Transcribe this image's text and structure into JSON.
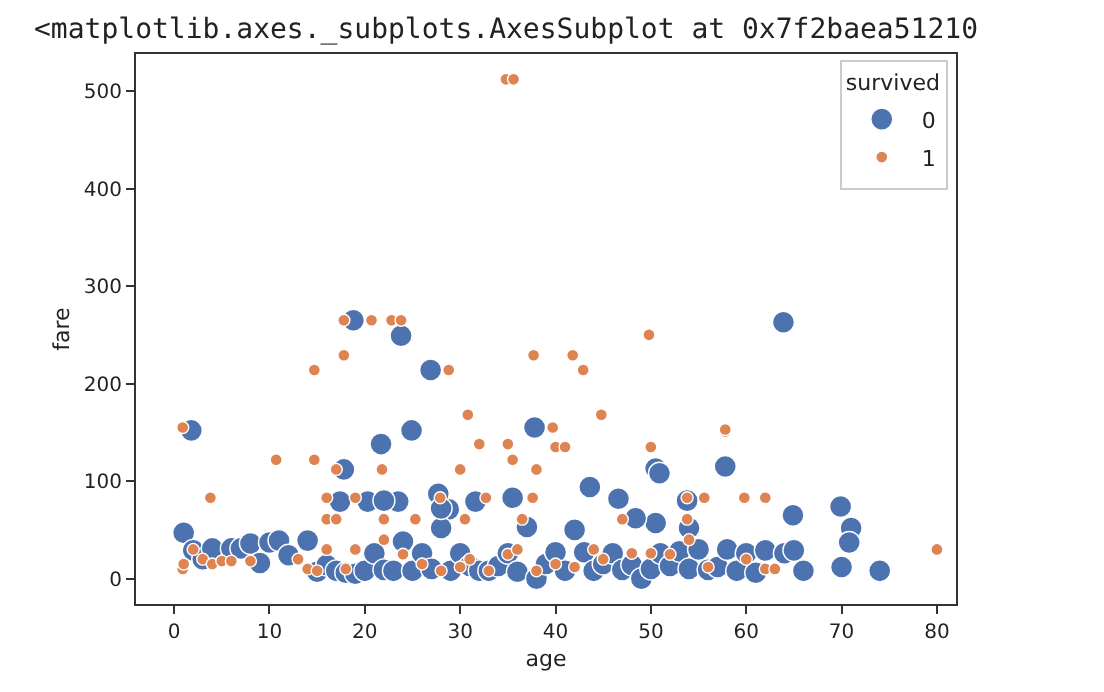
{
  "chart_data": {
    "type": "scatter",
    "xlabel": "age",
    "ylabel": "fare",
    "legend_title": "survived",
    "legend": "top right",
    "grid": false,
    "marker": "circle",
    "annotations": [
      "<matplotlib.axes._subplots.AxesSubplot at 0x7f2baea51210"
    ],
    "xlim": [
      -4,
      82
    ],
    "ylim": [
      -26,
      538
    ],
    "xticks": [
      0,
      10,
      20,
      30,
      40,
      50,
      60,
      70,
      80
    ],
    "yticks": [
      0,
      100,
      200,
      300,
      400,
      500
    ],
    "series": [
      {
        "name": "0",
        "color": "#4c72b0",
        "x": [
          18.8,
          23.8,
          26.9,
          63.9,
          1.8,
          24.9,
          37.8,
          21.7,
          17.8,
          50.5,
          50.9,
          57.8,
          43.6,
          46.6,
          28.8,
          31.6,
          35.5,
          27.7,
          17.4,
          20.3,
          23.5,
          64.9,
          69.9,
          71,
          70.8,
          74,
          70,
          53.8,
          54,
          50.5,
          48.4,
          1,
          2,
          3,
          4,
          6,
          7,
          8,
          9,
          10,
          11,
          12,
          14,
          15,
          16,
          17,
          18,
          19,
          20,
          21,
          22,
          23,
          24,
          25,
          26,
          27,
          28,
          29,
          30,
          31,
          32,
          33,
          34,
          35,
          36,
          37,
          38,
          39,
          40,
          41,
          42,
          43,
          44,
          45,
          46,
          47,
          48,
          49,
          50,
          51,
          52,
          53,
          54,
          55,
          56,
          57,
          58,
          59,
          60,
          61,
          62,
          64,
          65,
          66,
          22,
          28
        ],
        "values": [
          265,
          249,
          214,
          263,
          152,
          152,
          155,
          138,
          112,
          113,
          108,
          115,
          94,
          82,
          71,
          79,
          83,
          87,
          79,
          79,
          79,
          65,
          74,
          52,
          37,
          8,
          12,
          80,
          52,
          57,
          62,
          47,
          29,
          20,
          31,
          31,
          31,
          36,
          16,
          37,
          39,
          24,
          39,
          7,
          14,
          8,
          6,
          5,
          8,
          26,
          9,
          8,
          38,
          8,
          26,
          10,
          52,
          8,
          26,
          13,
          8,
          8,
          13,
          26,
          7,
          53,
          0,
          15,
          27,
          8,
          50,
          27,
          8,
          15,
          26,
          9,
          14,
          0,
          10,
          26,
          13,
          28,
          10,
          30,
          9,
          12,
          30,
          8,
          26,
          6,
          29,
          26,
          29,
          8,
          80,
          72
        ]
      },
      {
        "name": "1",
        "color": "#dd8452",
        "x": [
          34.8,
          35.6,
          17.8,
          20.7,
          22.8,
          23.8,
          17.8,
          37.7,
          41.8,
          49.8,
          14.7,
          28.8,
          42.9,
          30.8,
          44.8,
          0.9,
          39.7,
          57.8,
          57.8,
          32,
          35,
          40,
          41,
          50,
          10.7,
          14.7,
          35.5,
          17,
          21.8,
          30,
          38,
          3.8,
          16,
          19,
          27.9,
          32.7,
          37.6,
          53.8,
          55.6,
          59.8,
          62,
          16,
          17,
          22,
          25.3,
          30.5,
          36.5,
          47,
          53.8,
          0.9,
          1,
          2,
          3,
          4,
          5,
          6,
          8,
          13,
          14,
          15,
          16,
          18,
          19,
          22,
          24,
          26,
          28,
          30,
          31,
          33,
          35,
          36,
          38,
          40,
          42,
          44,
          45,
          48,
          50,
          52,
          54,
          56,
          60,
          62,
          63,
          80
        ],
        "values": [
          512,
          512,
          265,
          265,
          265,
          265,
          229,
          229,
          229,
          250,
          214,
          214,
          214,
          168,
          168,
          155,
          155,
          151,
          153,
          138,
          138,
          135,
          135,
          135,
          122,
          122,
          122,
          112,
          112,
          112,
          112,
          83,
          83,
          83,
          83,
          83,
          83,
          83,
          83,
          83,
          83,
          61,
          61,
          61,
          61,
          61,
          61,
          61,
          61,
          10,
          15,
          30,
          20,
          15,
          18,
          18,
          18,
          20,
          10,
          8,
          30,
          10,
          30,
          40,
          25,
          15,
          8,
          12,
          20,
          8,
          25,
          30,
          8,
          15,
          12,
          30,
          20,
          26,
          26,
          25,
          40,
          12,
          20,
          10,
          10,
          30
        ]
      }
    ]
  }
}
